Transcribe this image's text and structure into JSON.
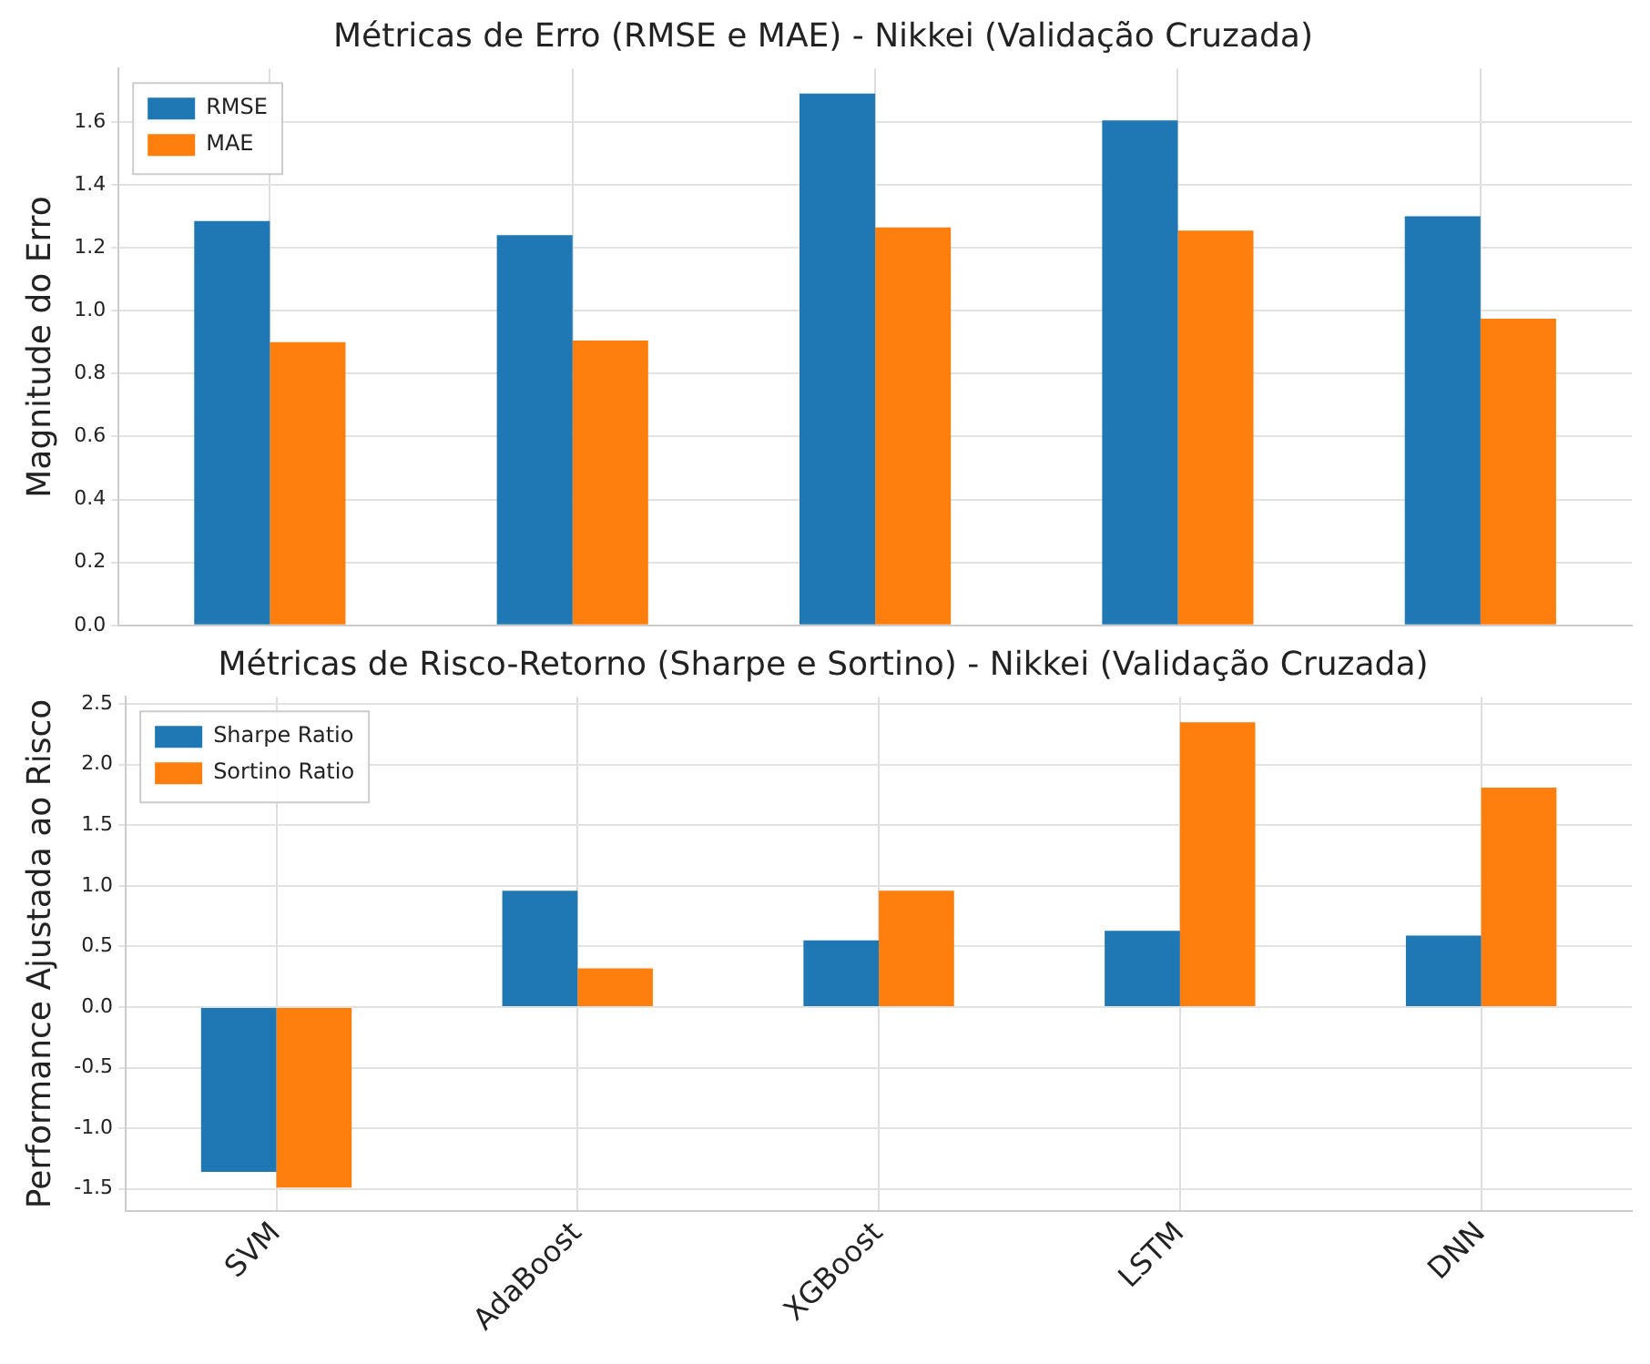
{
  "chart_data": [
    {
      "type": "bar",
      "title": "Métricas de Erro (RMSE e MAE) - Nikkei (Validação Cruzada)",
      "ylabel": "Magnitude do Erro",
      "categories": [
        null,
        null,
        null,
        null,
        null
      ],
      "series": [
        {
          "name": "RMSE",
          "color": "#1f77b4",
          "values": [
            1.285,
            1.24,
            1.69,
            1.605,
            1.3
          ]
        },
        {
          "name": "MAE",
          "color": "#ff7f0e",
          "values": [
            0.9,
            0.905,
            1.265,
            1.255,
            0.975
          ]
        }
      ],
      "ylim": [
        0,
        1.77
      ],
      "yticks": [
        {
          "value": 0,
          "label": "0.0"
        },
        {
          "value": 0.2,
          "label": "0.2"
        },
        {
          "value": 0.4,
          "label": "0.4"
        },
        {
          "value": 0.6,
          "label": "0.6"
        },
        {
          "value": 0.8,
          "label": "0.8"
        },
        {
          "value": 1,
          "label": "1.0"
        },
        {
          "value": 1.2,
          "label": "1.2"
        },
        {
          "value": 1.4,
          "label": "1.4"
        },
        {
          "value": 1.6,
          "label": "1.6"
        }
      ],
      "grid": true,
      "legend": "top left",
      "tick_labels": "y"
    },
    {
      "type": "bar",
      "title": "Métricas de Risco-Retorno (Sharpe e Sortino) - Nikkei (Validação Cruzada)",
      "ylabel": "Performance Ajustada ao Risco",
      "categories": [
        "SVM",
        "AdaBoost",
        "XGBoost",
        "LSTM",
        "DNN"
      ],
      "series": [
        {
          "name": "Sharpe Ratio",
          "color": "#1f77b4",
          "values": [
            -1.36,
            0.96,
            0.55,
            0.63,
            0.59
          ]
        },
        {
          "name": "Sortino Ratio",
          "color": "#ff7f0e",
          "values": [
            -1.49,
            0.32,
            0.96,
            2.35,
            1.81
          ]
        }
      ],
      "ylim": [
        -1.68,
        2.56
      ],
      "yticks": [
        {
          "value": -1.5,
          "label": "-1.5"
        },
        {
          "value": -1,
          "label": "-1.0"
        },
        {
          "value": -0.5,
          "label": "-0.5"
        },
        {
          "value": 0,
          "label": "0.0"
        },
        {
          "value": 0.5,
          "label": "0.5"
        },
        {
          "value": 1,
          "label": "1.0"
        },
        {
          "value": 1.5,
          "label": "1.5"
        },
        {
          "value": 2,
          "label": "2.0"
        },
        {
          "value": 2.5,
          "label": "2.5"
        }
      ],
      "grid": true,
      "legend": "top left"
    }
  ]
}
